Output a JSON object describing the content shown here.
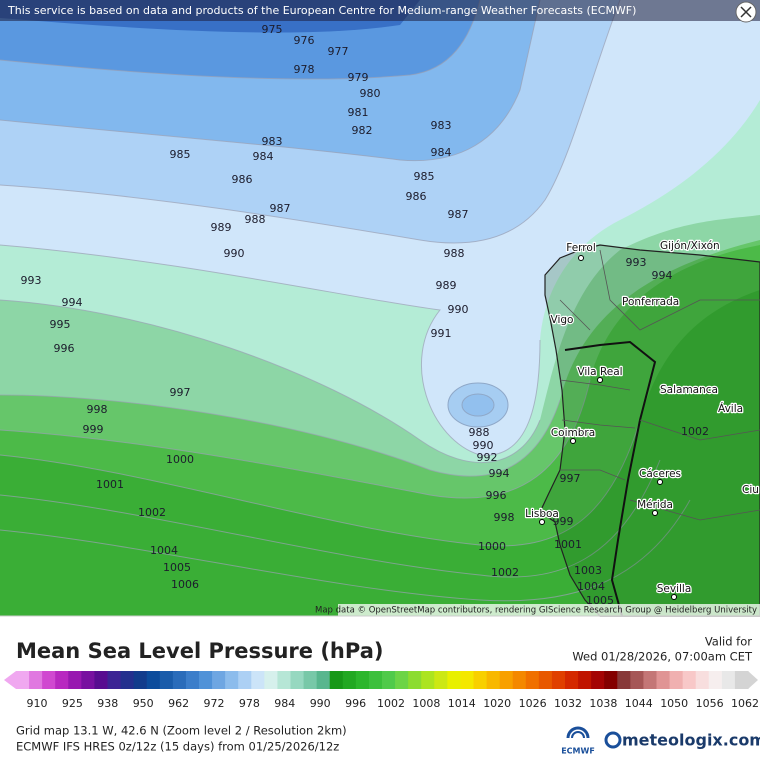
{
  "header": {
    "attribution": "This service is based on data and products of the European Centre for Medium-range Weather Forecasts (ECMWF)"
  },
  "map": {
    "contour_labels": [
      "975",
      "976",
      "977",
      "978",
      "979",
      "980",
      "981",
      "982",
      "983",
      "984",
      "985",
      "986",
      "987",
      "988",
      "989",
      "990",
      "983",
      "984",
      "985",
      "986",
      "987",
      "988",
      "989",
      "990",
      "991",
      "993",
      "994",
      "995",
      "996",
      "997",
      "998",
      "999",
      "1000",
      "1001",
      "1002",
      "1004",
      "1005",
      "1006",
      "988",
      "990",
      "992",
      "994",
      "996",
      "998",
      "1000",
      "1002",
      "993",
      "994",
      "997",
      "999",
      "1001",
      "1003",
      "1004",
      "1005",
      "1002"
    ],
    "places": [
      "Ferrol",
      "Gijón/Xixón",
      "Vigo",
      "Ponferrada",
      "Vila Real",
      "Salamanca",
      "Ávila",
      "Coimbra",
      "Cáceres",
      "Mérida",
      "Lisboa",
      "Sevilla",
      "Ciu"
    ],
    "credit": "Map data © OpenStreetMap contributors, rendering GIScience Research Group @ Heidelberg University"
  },
  "legend": {
    "title": "Mean Sea Level Pressure (hPa)",
    "valid_label": "Valid for",
    "valid_time": "Wed 01/28/2026, 07:00am CET",
    "ticks": [
      910,
      925,
      938,
      950,
      962,
      972,
      978,
      984,
      990,
      996,
      1002,
      1008,
      1014,
      1020,
      1026,
      1032,
      1038,
      1044,
      1050,
      1056,
      1062
    ],
    "colors": [
      "#f0a8f0",
      "#e078e0",
      "#d048d0",
      "#b828c0",
      "#9818b0",
      "#7810a0",
      "#580c90",
      "#3c2494",
      "#24308e",
      "#123c8c",
      "#0c4c9c",
      "#1a5caa",
      "#2a6cba",
      "#3c7eca",
      "#5092d8",
      "#6ea6e2",
      "#8cbcec",
      "#acd0f4",
      "#cce4f8",
      "#d6f0ec",
      "#b6e6d6",
      "#96d8c0",
      "#78c8a8",
      "#58b68e",
      "#189818",
      "#22a822",
      "#2cb62c",
      "#3cc03c",
      "#50ca4a",
      "#6cd446",
      "#8cdc30",
      "#acE420",
      "#cce814",
      "#e8f000",
      "#f4e800",
      "#f8d000",
      "#f8b800",
      "#f8a000",
      "#f48800",
      "#f07000",
      "#e85800",
      "#e04000",
      "#d42800",
      "#c01400",
      "#a40404",
      "#840000",
      "#883838",
      "#a65656",
      "#c47676",
      "#e09494",
      "#f0b0b0",
      "#f8c8c8",
      "#f8dede",
      "#f6eeee",
      "#e8e8e8",
      "#d4d4d4"
    ]
  },
  "footer": {
    "grid": "Grid map 13.1 W, 42.6 N (Zoom level 2 / Resolution 2km)",
    "model": "ECMWF IFS HRES 0z/12z (15 days) from  01/25/2026/12z",
    "ecmwf": "ECMWF",
    "brand": "meteologix.com"
  }
}
